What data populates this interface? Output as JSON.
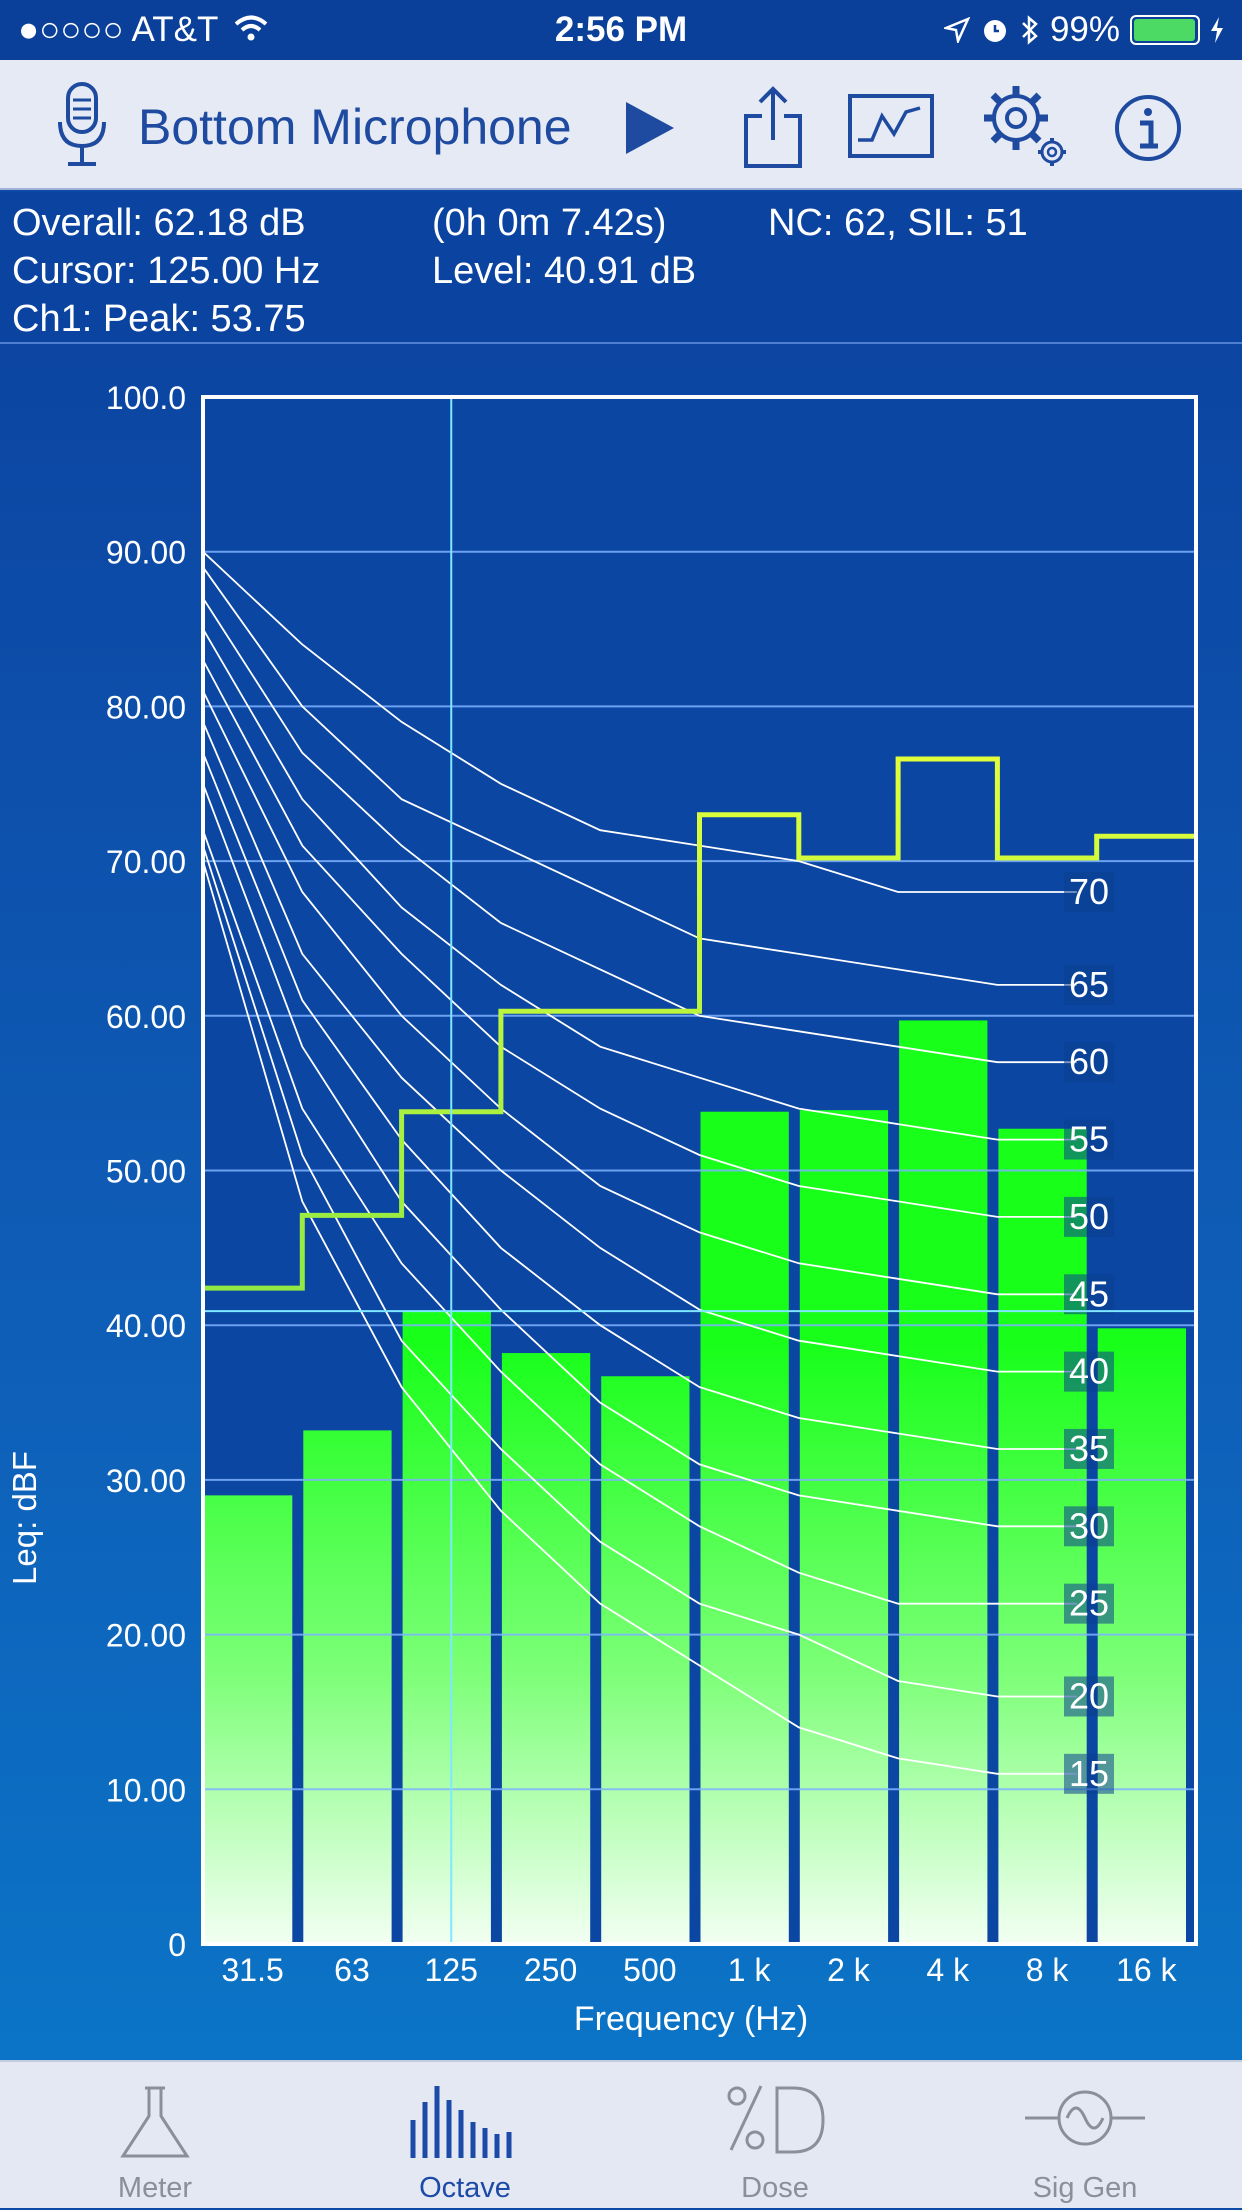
{
  "status_bar": {
    "carrier": "●○○○○ AT&T",
    "time": "2:56 PM",
    "battery": "99%",
    "battery_level": 0.99
  },
  "toolbar": {
    "mic_label": "Bottom Microphone",
    "icons": [
      "microphone-icon",
      "play-icon",
      "share-icon",
      "graph-icon",
      "settings-icon",
      "info-icon"
    ]
  },
  "info": {
    "overall": "Overall: 62.18  dB",
    "duration": "(0h  0m 7.42s)",
    "nc_sil": "NC: 62, SIL: 51",
    "cursor": "Cursor: 125.00 Hz",
    "level": "Level: 40.91 dB",
    "peak": "Ch1:  Peak: 53.75"
  },
  "chart_data": {
    "type": "bar",
    "categories": [
      "31.5",
      "63",
      "125",
      "250",
      "500",
      "1 k",
      "2 k",
      "4 k",
      "8 k",
      "16 k"
    ],
    "values": [
      29.0,
      33.2,
      40.9,
      38.2,
      36.7,
      53.8,
      53.9,
      59.7,
      52.7,
      39.8
    ],
    "xlabel": "Frequency (Hz)",
    "ylabel": "Leq: dBF",
    "ylim": [
      0,
      100
    ],
    "y_ticks": [
      0,
      10,
      20,
      30,
      40,
      50,
      60,
      70,
      80,
      90,
      100
    ],
    "y_tick_labels": [
      "0",
      "10.00",
      "20.00",
      "30.00",
      "40.00",
      "50.00",
      "60.00",
      "70.00",
      "80.00",
      "90.00",
      "100.0"
    ],
    "grid": true,
    "cursor": {
      "frequency": "125",
      "level": 40.91
    },
    "peak_hold": [
      42.4,
      47.1,
      53.8,
      60.3,
      60.3,
      73.0,
      70.2,
      76.6,
      70.2,
      71.6
    ],
    "nc_curves": [
      {
        "label": "70",
        "values": [
          90.0,
          84.0,
          79.0,
          75.0,
          72.0,
          71.0,
          70.0,
          68.0,
          68.0
        ]
      },
      {
        "label": "65",
        "values": [
          89.0,
          80.0,
          74.0,
          71.0,
          68.0,
          65.0,
          64.0,
          63.0,
          62.0
        ]
      },
      {
        "label": "60",
        "values": [
          87.0,
          77.0,
          71.0,
          66.0,
          63.0,
          60.0,
          59.0,
          58.0,
          57.0
        ]
      },
      {
        "label": "55",
        "values": [
          85.0,
          74.0,
          67.0,
          62.0,
          58.0,
          56.0,
          54.0,
          53.0,
          52.0
        ]
      },
      {
        "label": "50",
        "values": [
          83.0,
          71.0,
          64.0,
          58.0,
          54.0,
          51.0,
          49.0,
          48.0,
          47.0
        ]
      },
      {
        "label": "45",
        "values": [
          81.0,
          68.0,
          60.0,
          54.0,
          49.0,
          46.0,
          44.0,
          43.0,
          42.0
        ]
      },
      {
        "label": "40",
        "values": [
          79.0,
          64.0,
          56.0,
          50.0,
          45.0,
          41.0,
          39.0,
          38.0,
          37.0
        ]
      },
      {
        "label": "35",
        "values": [
          77.0,
          61.0,
          52.0,
          45.0,
          40.0,
          36.0,
          34.0,
          33.0,
          32.0
        ]
      },
      {
        "label": "30",
        "values": [
          75.0,
          58.0,
          48.0,
          41.0,
          35.0,
          31.0,
          29.0,
          28.0,
          27.0
        ]
      },
      {
        "label": "25",
        "values": [
          72.0,
          54.0,
          44.0,
          37.0,
          31.0,
          27.0,
          24.0,
          22.0,
          22.0
        ]
      },
      {
        "label": "20",
        "values": [
          71.0,
          51.0,
          39.0,
          32.0,
          26.0,
          22.0,
          20.0,
          17.0,
          16.0
        ]
      },
      {
        "label": "15",
        "values": [
          70.0,
          48.0,
          36.0,
          28.0,
          22.0,
          18.0,
          14.0,
          12.0,
          11.0
        ]
      }
    ],
    "colors": {
      "bar_top": "#18ff1a",
      "bar_bottom": "#f2fff2",
      "peak_line_low": "#4cd94a",
      "peak_line_high": "#e4ff3a",
      "cursor_line": "#7fe7ff",
      "nc_curve": "#ffffff",
      "grid": "#7fb2ff"
    }
  },
  "tabs": [
    {
      "label": "Meter",
      "icon": "flask-icon",
      "active": false
    },
    {
      "label": "Octave",
      "icon": "octave-bars-icon",
      "active": true
    },
    {
      "label": "Dose",
      "icon": "dose-icon",
      "active": false
    },
    {
      "label": "Sig Gen",
      "icon": "sine-wave-icon",
      "active": false
    }
  ]
}
